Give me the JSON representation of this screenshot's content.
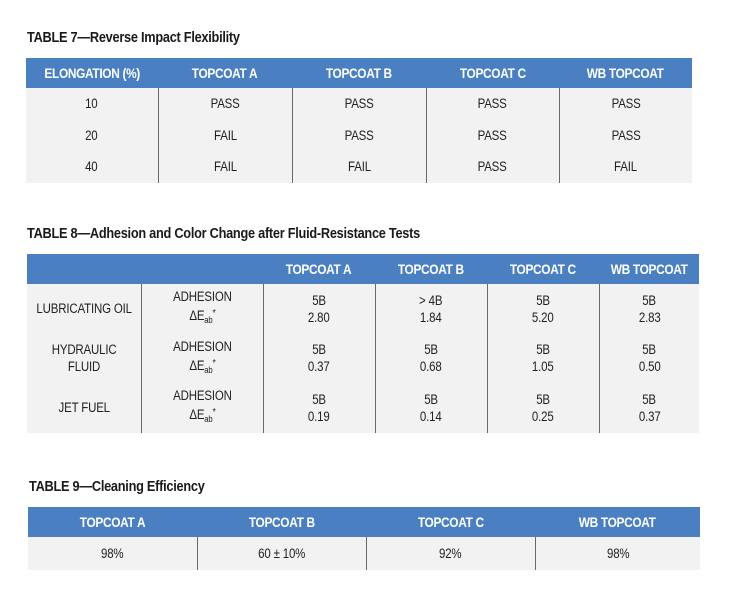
{
  "table7": {
    "title": "TABLE 7—Reverse Impact Flexibility",
    "headers": [
      "ELONGATION (%)",
      "TOPCOAT A",
      "TOPCOAT B",
      "TOPCOAT C",
      "WB TOPCOAT"
    ],
    "rows": [
      [
        "10",
        "PASS",
        "PASS",
        "PASS",
        "PASS"
      ],
      [
        "20",
        "FAIL",
        "PASS",
        "PASS",
        "PASS"
      ],
      [
        "40",
        "FAIL",
        "FAIL",
        "PASS",
        "FAIL"
      ]
    ]
  },
  "table8": {
    "title": "TABLE 8—Adhesion and Color Change after Fluid-Resistance Tests",
    "headers": [
      "",
      "",
      "TOPCOAT A",
      "TOPCOAT B",
      "TOPCOAT C",
      "WB TOPCOAT"
    ],
    "metric_adhesion": "ADHESION",
    "metric_delta": "ΔE",
    "metric_delta_sub": "ab",
    "metric_delta_sup": "*",
    "rows": [
      {
        "fluid_line1": "LUBRICATING OIL",
        "fluid_line2": "",
        "adhesion": [
          "5B",
          "> 4B",
          "5B",
          "5B"
        ],
        "delta": [
          "2.80",
          "1.84",
          "5.20",
          "2.83"
        ]
      },
      {
        "fluid_line1": "HYDRAULIC",
        "fluid_line2": "FLUID",
        "adhesion": [
          "5B",
          "5B",
          "5B",
          "5B"
        ],
        "delta": [
          "0.37",
          "0.68",
          "1.05",
          "0.50"
        ]
      },
      {
        "fluid_line1": "JET FUEL",
        "fluid_line2": "",
        "adhesion": [
          "5B",
          "5B",
          "5B",
          "5B"
        ],
        "delta": [
          "0.19",
          "0.14",
          "0.25",
          "0.37"
        ]
      }
    ]
  },
  "table9": {
    "title": "TABLE 9—Cleaning Efficiency",
    "headers": [
      "TOPCOAT A",
      "TOPCOAT B",
      "TOPCOAT C",
      "WB TOPCOAT"
    ],
    "values": [
      "98%",
      "60 ± 10%",
      "92%",
      "98%"
    ]
  }
}
